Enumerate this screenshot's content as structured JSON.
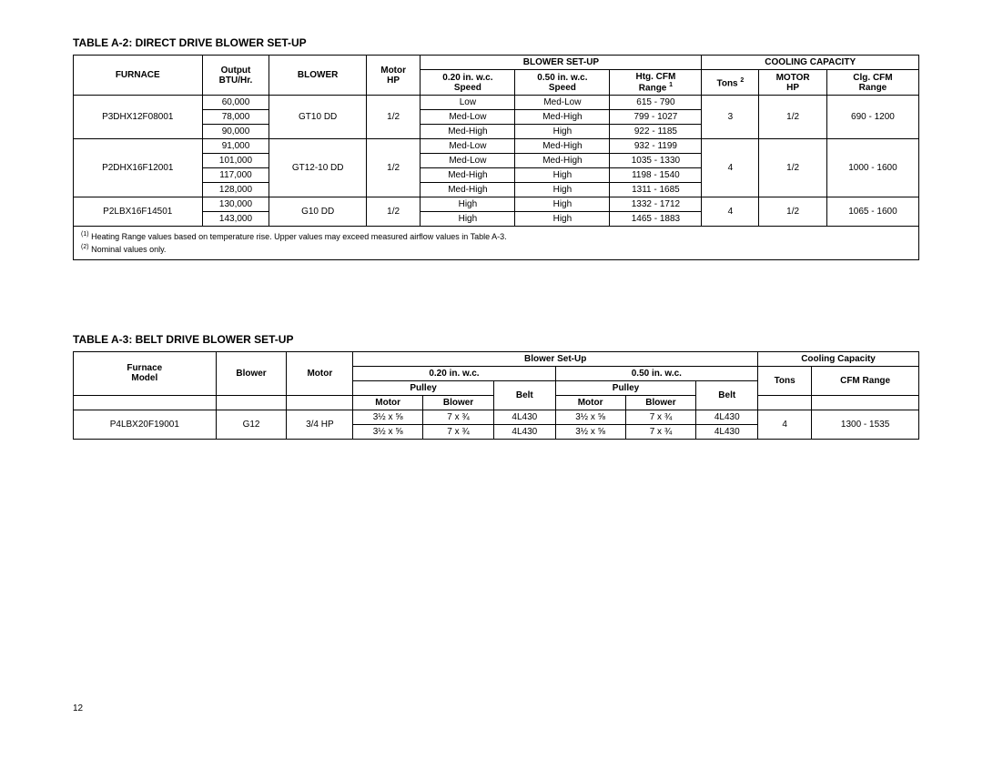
{
  "table_a2": {
    "title": "TABLE A-2: DIRECT DRIVE BLOWER SET-UP",
    "headers": {
      "furnace": "FURNACE",
      "output": "Output",
      "btu_hr": "BTU/Hr.",
      "blower": "BLOWER",
      "motor": "Motor",
      "hp": "HP",
      "blower_setup": "BLOWER SET-UP",
      "cooling_capacity": "COOLING CAPACITY",
      "col_020": "0.20 in. w.c.",
      "col_050": "0.50 in. w.c.",
      "htg_cfm": "Htg. CFM",
      "range": "Range",
      "super1": "1",
      "tons": "Tons",
      "super2": "2",
      "motor2": "MOTOR",
      "hp2": "HP",
      "clg_cfm": "Clg. CFM",
      "range2": "Range",
      "speed": "Speed"
    },
    "group1": {
      "furnace": "P3DHX12F08001",
      "blower": "GT10 DD",
      "motor_hp": "1/2",
      "tons": "3",
      "motor_hp2": "1/2",
      "clg_range": "690 - 1200",
      "rows": [
        {
          "btu": "60,000",
          "s020": "Low",
          "s050": "Med-Low",
          "htg": "615 - 790"
        },
        {
          "btu": "78,000",
          "s020": "Med-Low",
          "s050": "Med-High",
          "htg": "799 - 1027"
        },
        {
          "btu": "90,000",
          "s020": "Med-High",
          "s050": "High",
          "htg": "922 - 1185"
        }
      ]
    },
    "group2": {
      "furnace": "P2DHX16F12001",
      "blower": "GT12-10 DD",
      "motor_hp": "1/2",
      "tons": "4",
      "motor_hp2": "1/2",
      "clg_range": "1000 - 1600",
      "rows": [
        {
          "btu": "91,000",
          "s020": "Med-Low",
          "s050": "Med-High",
          "htg": "932 - 1199"
        },
        {
          "btu": "101,000",
          "s020": "Med-Low",
          "s050": "Med-High",
          "htg": "1035 - 1330"
        },
        {
          "btu": "117,000",
          "s020": "Med-High",
          "s050": "High",
          "htg": "1198 - 1540"
        },
        {
          "btu": "128,000",
          "s020": "Med-High",
          "s050": "High",
          "htg": "1311 - 1685"
        }
      ]
    },
    "group3": {
      "furnace": "P2LBX16F14501",
      "blower": "G10 DD",
      "motor_hp": "1/2",
      "tons": "4",
      "motor_hp2": "1/2",
      "clg_range": "1065 - 1600",
      "rows": [
        {
          "btu": "130,000",
          "s020": "High",
          "s050": "High",
          "htg": "1332 - 1712"
        },
        {
          "btu": "143,000",
          "s020": "High",
          "s050": "High",
          "htg": "1465 - 1883"
        }
      ]
    },
    "footnote1_sup": "(1)",
    "footnote1": " Heating Range values based on temperature rise. Upper values may exceed measured airflow values in Table A-3.",
    "footnote2_sup": "(2)",
    "footnote2": " Nominal values only."
  },
  "table_a3": {
    "title": "TABLE A-3: BELT DRIVE BLOWER SET-UP",
    "headers": {
      "furnace_model": "Furnace",
      "model": "Model",
      "blower": "Blower",
      "motor": "Motor",
      "blower_setup": "Blower Set-Up",
      "cooling_capacity": "Cooling Capacity",
      "col_020": "0.20 in. w.c.",
      "col_050": "0.50 in. w.c.",
      "pulley": "Pulley",
      "belt": "Belt",
      "tons": "Tons",
      "cfm_range": "CFM Range",
      "motor_sub": "Motor",
      "blower_sub": "Blower"
    },
    "group1": {
      "furnace": "P4LBX20F19001",
      "blower": "G12",
      "motor": "3/4 HP",
      "tons": "4",
      "cfm_range": "1300 - 1535",
      "rows": [
        {
          "m020": "3½ x ⅝",
          "b020": "7 x ¾",
          "belt020": "4L430",
          "m050": "3½ x ⅝",
          "b050": "7 x ¾",
          "belt050": "4L430"
        },
        {
          "m020": "3½ x ⅝",
          "b020": "7 x ¾",
          "belt020": "4L430",
          "m050": "3½ x ⅝",
          "b050": "7 x ¾",
          "belt050": "4L430"
        }
      ]
    }
  },
  "page_number": "12"
}
